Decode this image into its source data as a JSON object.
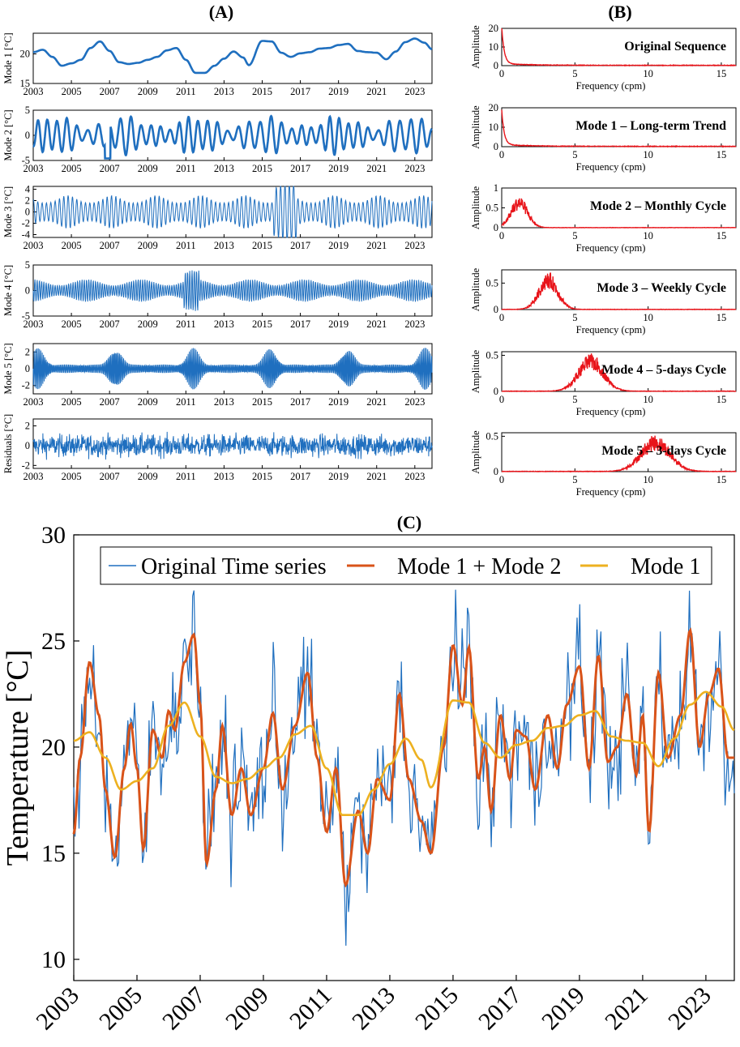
{
  "panels": {
    "a": "(A)",
    "b": "(B)",
    "c": "(C)"
  },
  "colors": {
    "blue": "#1f6fbf",
    "red": "#e8141a",
    "orange": "#d95319",
    "yellow": "#edb120",
    "axis": "#000000"
  },
  "chart_data": [
    {
      "id": "A",
      "type": "line",
      "title": "(A)",
      "x_tick_labels": [
        "2003",
        "2005",
        "2007",
        "2009",
        "2011",
        "2013",
        "2015",
        "2017",
        "2019",
        "2021",
        "2023"
      ],
      "xlim": [
        2003,
        2023.9
      ],
      "subplots": [
        {
          "ylabel": "Mode 1 [°C]",
          "yticks": [
            15,
            20
          ],
          "ylim": [
            15,
            23.5
          ],
          "style": "trend"
        },
        {
          "ylabel": "Mode 2 [°C]",
          "yticks": [
            -5,
            0,
            5
          ],
          "ylim": [
            -5,
            5
          ],
          "style": "monthly"
        },
        {
          "ylabel": "Mode 3 [°C]",
          "yticks": [
            -4,
            -2,
            0,
            2,
            4
          ],
          "ylim": [
            -4.5,
            4.5
          ],
          "style": "weekly"
        },
        {
          "ylabel": "Mode 4 [°C]",
          "yticks": [
            -5,
            0,
            5
          ],
          "ylim": [
            -5,
            5
          ],
          "style": "fiveday"
        },
        {
          "ylabel": "Mode 5 [°C]",
          "yticks": [
            -2,
            0,
            2
          ],
          "ylim": [
            -3,
            3
          ],
          "style": "threeday"
        },
        {
          "ylabel": "Residuals [°C]",
          "yticks": [
            -2,
            0,
            2
          ],
          "ylim": [
            -2.3,
            2.7
          ],
          "style": "resid"
        }
      ],
      "mode1_points": [
        [
          2003,
          20.3
        ],
        [
          2003.5,
          20.7
        ],
        [
          2004,
          19.5
        ],
        [
          2004.5,
          18.0
        ],
        [
          2005,
          18.4
        ],
        [
          2005.5,
          19.0
        ],
        [
          2006,
          21.0
        ],
        [
          2006.5,
          22.1
        ],
        [
          2007,
          20.5
        ],
        [
          2007.5,
          18.6
        ],
        [
          2008,
          18.3
        ],
        [
          2008.5,
          18.5
        ],
        [
          2009,
          19.0
        ],
        [
          2009.5,
          19.5
        ],
        [
          2010,
          20.6
        ],
        [
          2010.5,
          21.0
        ],
        [
          2011,
          19.0
        ],
        [
          2011.5,
          16.8
        ],
        [
          2012,
          16.8
        ],
        [
          2012.5,
          18.0
        ],
        [
          2013,
          19.2
        ],
        [
          2013.5,
          20.4
        ],
        [
          2014,
          19.4
        ],
        [
          2014.3,
          18.1
        ],
        [
          2015,
          22.2
        ],
        [
          2015.5,
          22.1
        ],
        [
          2016,
          20.2
        ],
        [
          2016.5,
          19.5
        ],
        [
          2017,
          20.1
        ],
        [
          2017.5,
          20.3
        ],
        [
          2018,
          20.9
        ],
        [
          2018.5,
          21.0
        ],
        [
          2019,
          21.5
        ],
        [
          2019.5,
          21.7
        ],
        [
          2020,
          20.5
        ],
        [
          2020.5,
          20.3
        ],
        [
          2021,
          20.2
        ],
        [
          2021.5,
          19.1
        ],
        [
          2022,
          20.4
        ],
        [
          2022.5,
          22.0
        ],
        [
          2023,
          22.6
        ],
        [
          2023.5,
          21.9
        ],
        [
          2023.9,
          20.8
        ]
      ]
    },
    {
      "id": "B",
      "type": "line",
      "title": "(B)",
      "xlabel": "Frequency (cpm)",
      "ylabel": "Amplitude",
      "xlim": [
        0,
        16
      ],
      "x_ticks": [
        0,
        5,
        10,
        15
      ],
      "spectra": [
        {
          "label": "Original Sequence",
          "ylim": [
            0,
            20
          ],
          "yticks": [
            0,
            10,
            20
          ],
          "kind": "decay",
          "peak_freq": 0,
          "peak_amp": 20
        },
        {
          "label": "Mode 1 – Long-term Trend",
          "ylim": [
            0,
            20
          ],
          "yticks": [
            0,
            10,
            20
          ],
          "kind": "decay",
          "peak_freq": 0,
          "peak_amp": 18
        },
        {
          "label": "Mode 2 – Monthly Cycle",
          "ylim": [
            0,
            1
          ],
          "yticks": [
            0,
            0.5,
            1
          ],
          "kind": "band",
          "peak_freq": 1.2,
          "peak_amp": 0.8,
          "width": 0.8
        },
        {
          "label": "Mode 3 – Weekly Cycle",
          "ylim": [
            0,
            0.75
          ],
          "yticks": [
            0,
            0.5
          ],
          "kind": "band",
          "peak_freq": 3.2,
          "peak_amp": 0.7,
          "width": 0.9
        },
        {
          "label": "Mode 4 – 5-days Cycle",
          "ylim": [
            0,
            0.55
          ],
          "yticks": [
            0,
            0.5
          ],
          "kind": "band",
          "peak_freq": 6.1,
          "peak_amp": 0.52,
          "width": 1.2
        },
        {
          "label": "Mode 5 – 3-days Cycle",
          "ylim": [
            0,
            0.55
          ],
          "yticks": [
            0,
            0.5
          ],
          "kind": "band",
          "peak_freq": 10.5,
          "peak_amp": 0.52,
          "width": 1.4
        }
      ]
    },
    {
      "id": "C",
      "type": "line",
      "title": "(C)",
      "ylabel": "Temperature [°C]",
      "ylim": [
        9,
        30
      ],
      "yticks": [
        10,
        15,
        20,
        25,
        30
      ],
      "xlim": [
        2003,
        2023.9
      ],
      "x_tick_labels": [
        "2003",
        "2005",
        "2007",
        "2009",
        "2011",
        "2013",
        "2015",
        "2017",
        "2019",
        "2021",
        "2023"
      ],
      "legend": [
        "Original Time series",
        "Mode 1 + Mode 2",
        "Mode 1"
      ],
      "series": [
        {
          "name": "Original Time series",
          "color": "#1f6fbf"
        },
        {
          "name": "Mode 1 + Mode 2",
          "color": "#d95319",
          "points": [
            [
              2003,
              15.9
            ],
            [
              2003.2,
              19.5
            ],
            [
              2003.5,
              24.0
            ],
            [
              2003.8,
              21.5
            ],
            [
              2004,
              18.0
            ],
            [
              2004.3,
              14.8
            ],
            [
              2004.6,
              19.0
            ],
            [
              2004.8,
              21.1
            ],
            [
              2005,
              19.0
            ],
            [
              2005.2,
              15.2
            ],
            [
              2005.5,
              20.8
            ],
            [
              2005.8,
              19.5
            ],
            [
              2006,
              21.7
            ],
            [
              2006.2,
              20.8
            ],
            [
              2006.5,
              24.0
            ],
            [
              2006.8,
              25.3
            ],
            [
              2007,
              22.0
            ],
            [
              2007.2,
              14.5
            ],
            [
              2007.5,
              18.0
            ],
            [
              2007.7,
              21.0
            ],
            [
              2008,
              16.8
            ],
            [
              2008.3,
              19.0
            ],
            [
              2008.6,
              16.8
            ],
            [
              2009,
              19.0
            ],
            [
              2009.3,
              21.6
            ],
            [
              2009.6,
              18.0
            ],
            [
              2010,
              21.0
            ],
            [
              2010.4,
              23.5
            ],
            [
              2010.7,
              19.5
            ],
            [
              2011,
              16.0
            ],
            [
              2011.3,
              19.0
            ],
            [
              2011.6,
              13.5
            ],
            [
              2012,
              17.0
            ],
            [
              2012.3,
              15.0
            ],
            [
              2012.6,
              18.5
            ],
            [
              2013,
              17.5
            ],
            [
              2013.3,
              22.5
            ],
            [
              2013.6,
              18.5
            ],
            [
              2014,
              16.5
            ],
            [
              2014.3,
              15.0
            ],
            [
              2014.7,
              20.0
            ],
            [
              2015,
              24.8
            ],
            [
              2015.3,
              22.0
            ],
            [
              2015.5,
              24.7
            ],
            [
              2015.8,
              18.5
            ],
            [
              2016,
              20.0
            ],
            [
              2016.2,
              17.0
            ],
            [
              2016.5,
              21.5
            ],
            [
              2016.8,
              18.5
            ],
            [
              2017,
              20.8
            ],
            [
              2017.3,
              20.5
            ],
            [
              2017.6,
              18.0
            ],
            [
              2018,
              21.5
            ],
            [
              2018.3,
              19.0
            ],
            [
              2018.6,
              22.0
            ],
            [
              2019,
              23.8
            ],
            [
              2019.3,
              19.0
            ],
            [
              2019.6,
              24.3
            ],
            [
              2019.9,
              19.3
            ],
            [
              2020.2,
              20.0
            ],
            [
              2020.5,
              22.5
            ],
            [
              2020.8,
              18.7
            ],
            [
              2021,
              21.5
            ],
            [
              2021.2,
              16.0
            ],
            [
              2021.5,
              23.5
            ],
            [
              2021.8,
              19.5
            ],
            [
              2022.2,
              21.5
            ],
            [
              2022.5,
              25.5
            ],
            [
              2022.8,
              20.0
            ],
            [
              2023.1,
              22.5
            ],
            [
              2023.4,
              23.7
            ],
            [
              2023.7,
              19.5
            ],
            [
              2023.9,
              19.5
            ]
          ]
        },
        {
          "name": "Mode 1",
          "color": "#edb120",
          "use_mode1": true
        }
      ]
    }
  ]
}
